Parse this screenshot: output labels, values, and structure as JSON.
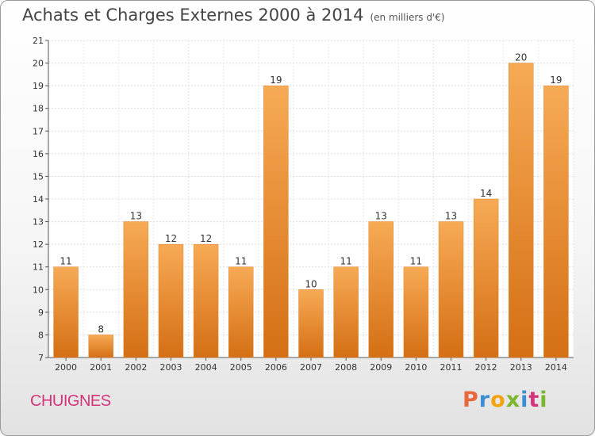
{
  "header": {
    "title": "Achats et Charges Externes 2000 à 2014",
    "subtitle": "(en milliers d'€)"
  },
  "footer": {
    "commune": "CHUIGNES",
    "logo_text": "Proxiti",
    "logo_colors": [
      "#e9673d",
      "#3c8ed2",
      "#f2a30f",
      "#7bb62f",
      "#3c8ed2",
      "#d3347a",
      "#7bb62f"
    ]
  },
  "colors": {
    "bar_top": "#f7aa55",
    "bar_bottom": "#d46f14",
    "title": "#444444",
    "commune": "#d3347a"
  },
  "chart_data": {
    "type": "bar",
    "title": "Achats et Charges Externes 2000 à 2014",
    "subtitle": "(en milliers d'€)",
    "categories": [
      "2000",
      "2001",
      "2002",
      "2003",
      "2004",
      "2005",
      "2006",
      "2007",
      "2008",
      "2009",
      "2010",
      "2011",
      "2012",
      "2013",
      "2014"
    ],
    "values": [
      11,
      8,
      13,
      12,
      12,
      11,
      19,
      10,
      11,
      13,
      11,
      13,
      14,
      20,
      19
    ],
    "ylim": [
      7,
      21
    ],
    "yticks": [
      7,
      8,
      9,
      10,
      11,
      12,
      13,
      14,
      15,
      16,
      17,
      18,
      19,
      20,
      21
    ],
    "grid": true,
    "legend": "none"
  }
}
